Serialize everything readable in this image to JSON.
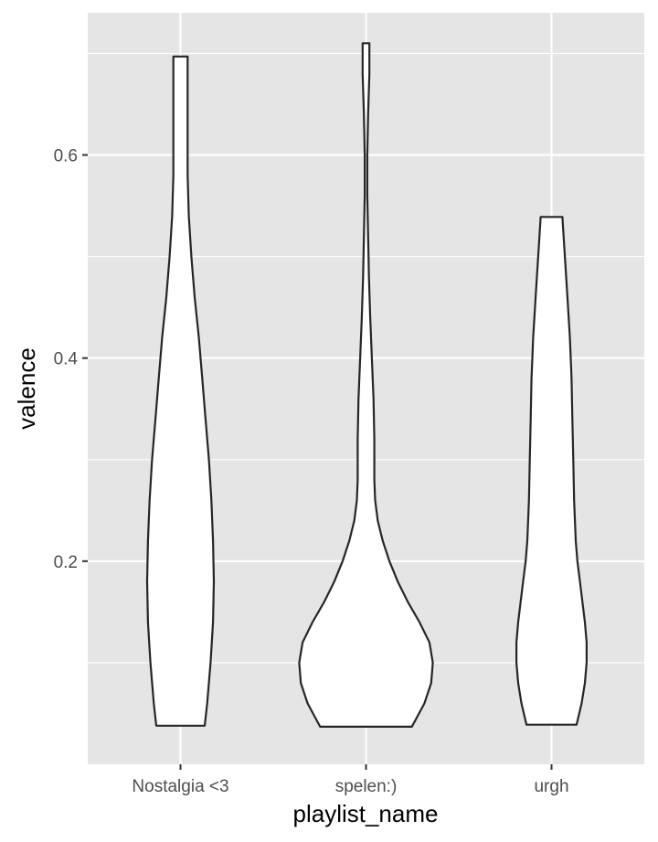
{
  "chart_data": {
    "type": "violin",
    "xlabel": "playlist_name",
    "ylabel": "valence",
    "ylim": [
      0.0,
      0.74
    ],
    "y_ticks": [
      0.2,
      0.4,
      0.6
    ],
    "y_tick_labels": [
      "0.2",
      "0.4",
      "0.6"
    ],
    "grid": true,
    "categories": [
      "Nostalgia <3",
      "spelen:)",
      "urgh"
    ],
    "series": [
      {
        "category": "Nostalgia <3",
        "min": 0.038,
        "max": 0.697,
        "density_profile": [
          [
            0.038,
            0.29
          ],
          [
            0.06,
            0.32
          ],
          [
            0.1,
            0.36
          ],
          [
            0.14,
            0.39
          ],
          [
            0.18,
            0.4
          ],
          [
            0.22,
            0.39
          ],
          [
            0.26,
            0.37
          ],
          [
            0.3,
            0.34
          ],
          [
            0.34,
            0.3
          ],
          [
            0.38,
            0.26
          ],
          [
            0.42,
            0.22
          ],
          [
            0.46,
            0.17
          ],
          [
            0.5,
            0.13
          ],
          [
            0.54,
            0.1
          ],
          [
            0.58,
            0.085
          ],
          [
            0.62,
            0.085
          ],
          [
            0.66,
            0.085
          ],
          [
            0.697,
            0.085
          ]
        ]
      },
      {
        "category": "spelen:)",
        "min": 0.037,
        "max": 0.71,
        "density_profile": [
          [
            0.037,
            0.55
          ],
          [
            0.06,
            0.7
          ],
          [
            0.08,
            0.78
          ],
          [
            0.1,
            0.8
          ],
          [
            0.12,
            0.76
          ],
          [
            0.14,
            0.64
          ],
          [
            0.16,
            0.5
          ],
          [
            0.18,
            0.38
          ],
          [
            0.2,
            0.28
          ],
          [
            0.22,
            0.2
          ],
          [
            0.24,
            0.14
          ],
          [
            0.26,
            0.11
          ],
          [
            0.28,
            0.1
          ],
          [
            0.32,
            0.1
          ],
          [
            0.36,
            0.09
          ],
          [
            0.4,
            0.07
          ],
          [
            0.44,
            0.05
          ],
          [
            0.48,
            0.035
          ],
          [
            0.52,
            0.025
          ],
          [
            0.56,
            0.015
          ],
          [
            0.6,
            0.015
          ],
          [
            0.64,
            0.025
          ],
          [
            0.68,
            0.04
          ],
          [
            0.71,
            0.04
          ]
        ]
      },
      {
        "category": "urgh",
        "min": 0.039,
        "max": 0.539,
        "density_profile": [
          [
            0.039,
            0.3
          ],
          [
            0.06,
            0.36
          ],
          [
            0.08,
            0.4
          ],
          [
            0.1,
            0.42
          ],
          [
            0.12,
            0.42
          ],
          [
            0.14,
            0.4
          ],
          [
            0.16,
            0.37
          ],
          [
            0.18,
            0.34
          ],
          [
            0.2,
            0.31
          ],
          [
            0.22,
            0.29
          ],
          [
            0.26,
            0.27
          ],
          [
            0.3,
            0.26
          ],
          [
            0.34,
            0.25
          ],
          [
            0.38,
            0.24
          ],
          [
            0.42,
            0.22
          ],
          [
            0.46,
            0.19
          ],
          [
            0.5,
            0.16
          ],
          [
            0.52,
            0.145
          ],
          [
            0.539,
            0.13
          ]
        ]
      }
    ]
  },
  "colors": {
    "panel_background": "#e5e5e5",
    "grid_major": "#ffffff",
    "violin_fill": "#ffffff",
    "violin_stroke": "#262626",
    "tick_color": "#333333"
  }
}
